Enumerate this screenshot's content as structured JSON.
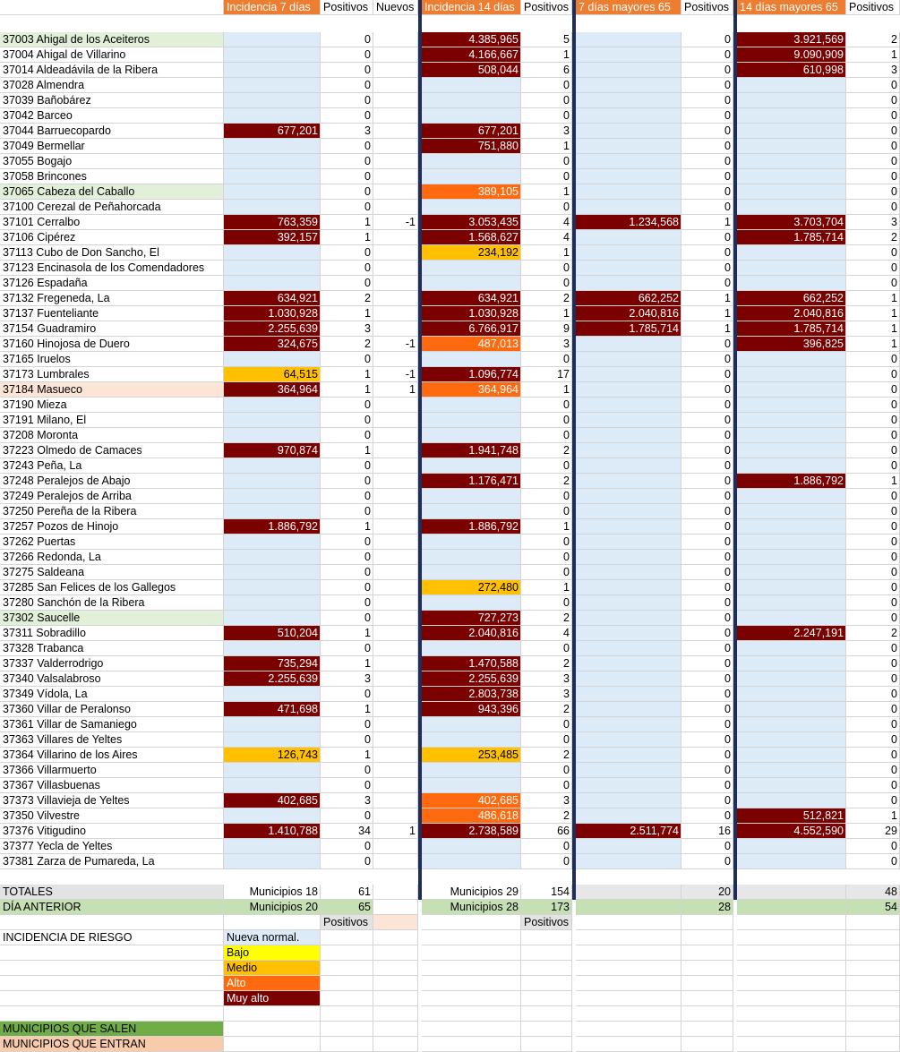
{
  "headers": [
    "",
    "Incidencia 7 días",
    "Positivos",
    "Nuevos",
    "Incidencia 14 días",
    "Positivos",
    "7 días mayores 65",
    "Positivos",
    "14 días mayores 65",
    "Positivos"
  ],
  "rows": [
    {
      "name": "37003 Ahigal de los Aceiteros",
      "hl": "green",
      "i7": "",
      "i7c": "ln",
      "p7": "0",
      "nu": "",
      "i14": "4.385,965",
      "i14c": "muyalto",
      "p14": "5",
      "m7": "",
      "m7c": "ln",
      "pm7": "0",
      "m14": "3.921,569",
      "m14c": "muyalto",
      "pm14": "2"
    },
    {
      "name": "37004 Ahigal de Villarino",
      "hl": "",
      "i7": "",
      "i7c": "ln",
      "p7": "0",
      "nu": "",
      "i14": "4.166,667",
      "i14c": "muyalto",
      "p14": "1",
      "m7": "",
      "m7c": "ln",
      "pm7": "0",
      "m14": "9.090,909",
      "m14c": "muyalto",
      "pm14": "1"
    },
    {
      "name": "37014 Aldeadávila de la Ribera",
      "hl": "",
      "i7": "",
      "i7c": "ln",
      "p7": "0",
      "nu": "",
      "i14": "508,044",
      "i14c": "muyalto",
      "p14": "6",
      "m7": "",
      "m7c": "ln",
      "pm7": "0",
      "m14": "610,998",
      "m14c": "muyalto",
      "pm14": "3"
    },
    {
      "name": "37028 Almendra",
      "hl": "",
      "i7": "",
      "i7c": "ln",
      "p7": "0",
      "nu": "",
      "i14": "",
      "i14c": "ln",
      "p14": "0",
      "m7": "",
      "m7c": "ln",
      "pm7": "0",
      "m14": "",
      "m14c": "ln",
      "pm14": "0"
    },
    {
      "name": "37039 Bañobárez",
      "hl": "",
      "i7": "",
      "i7c": "ln",
      "p7": "0",
      "nu": "",
      "i14": "",
      "i14c": "ln",
      "p14": "0",
      "m7": "",
      "m7c": "ln",
      "pm7": "0",
      "m14": "",
      "m14c": "ln",
      "pm14": "0"
    },
    {
      "name": "37042 Barceo",
      "hl": "",
      "i7": "",
      "i7c": "ln",
      "p7": "0",
      "nu": "",
      "i14": "",
      "i14c": "ln",
      "p14": "0",
      "m7": "",
      "m7c": "ln",
      "pm7": "0",
      "m14": "",
      "m14c": "ln",
      "pm14": "0"
    },
    {
      "name": "37044 Barruecopardo",
      "hl": "",
      "i7": "677,201",
      "i7c": "muyalto",
      "p7": "3",
      "nu": "",
      "i14": "677,201",
      "i14c": "muyalto",
      "p14": "3",
      "m7": "",
      "m7c": "ln",
      "pm7": "0",
      "m14": "",
      "m14c": "ln",
      "pm14": "0"
    },
    {
      "name": "37049 Bermellar",
      "hl": "",
      "i7": "",
      "i7c": "ln",
      "p7": "0",
      "nu": "",
      "i14": "751,880",
      "i14c": "muyalto",
      "p14": "1",
      "m7": "",
      "m7c": "ln",
      "pm7": "0",
      "m14": "",
      "m14c": "ln",
      "pm14": "0"
    },
    {
      "name": "37055 Bogajo",
      "hl": "",
      "i7": "",
      "i7c": "ln",
      "p7": "0",
      "nu": "",
      "i14": "",
      "i14c": "ln",
      "p14": "0",
      "m7": "",
      "m7c": "ln",
      "pm7": "0",
      "m14": "",
      "m14c": "ln",
      "pm14": "0"
    },
    {
      "name": "37058 Brincones",
      "hl": "",
      "i7": "",
      "i7c": "ln",
      "p7": "0",
      "nu": "",
      "i14": "",
      "i14c": "ln",
      "p14": "0",
      "m7": "",
      "m7c": "ln",
      "pm7": "0",
      "m14": "",
      "m14c": "ln",
      "pm14": "0"
    },
    {
      "name": "37065 Cabeza del Caballo",
      "hl": "green",
      "i7": "",
      "i7c": "ln",
      "p7": "0",
      "nu": "",
      "i14": "389,105",
      "i14c": "alto",
      "p14": "1",
      "m7": "",
      "m7c": "ln",
      "pm7": "0",
      "m14": "",
      "m14c": "ln",
      "pm14": "0"
    },
    {
      "name": "37100 Cerezal de Peñahorcada",
      "hl": "",
      "i7": "",
      "i7c": "ln",
      "p7": "0",
      "nu": "",
      "i14": "",
      "i14c": "ln",
      "p14": "0",
      "m7": "",
      "m7c": "ln",
      "pm7": "0",
      "m14": "",
      "m14c": "ln",
      "pm14": "0"
    },
    {
      "name": "37101 Cerralbo",
      "hl": "",
      "i7": "763,359",
      "i7c": "muyalto",
      "p7": "1",
      "nu": "-1",
      "i14": "3.053,435",
      "i14c": "muyalto",
      "p14": "4",
      "m7": "1.234,568",
      "m7c": "muyalto",
      "pm7": "1",
      "m14": "3.703,704",
      "m14c": "muyalto",
      "pm14": "3"
    },
    {
      "name": "37106 Cipérez",
      "hl": "",
      "i7": "392,157",
      "i7c": "muyalto",
      "p7": "1",
      "nu": "",
      "i14": "1.568,627",
      "i14c": "muyalto",
      "p14": "4",
      "m7": "",
      "m7c": "ln",
      "pm7": "0",
      "m14": "1.785,714",
      "m14c": "muyalto",
      "pm14": "2"
    },
    {
      "name": "37113 Cubo de Don Sancho, El",
      "hl": "",
      "i7": "",
      "i7c": "ln",
      "p7": "0",
      "nu": "",
      "i14": "234,192",
      "i14c": "medio",
      "p14": "1",
      "m7": "",
      "m7c": "ln",
      "pm7": "0",
      "m14": "",
      "m14c": "ln",
      "pm14": "0"
    },
    {
      "name": "37123 Encinasola de los Comendadores",
      "hl": "",
      "i7": "",
      "i7c": "ln",
      "p7": "0",
      "nu": "",
      "i14": "",
      "i14c": "ln",
      "p14": "0",
      "m7": "",
      "m7c": "ln",
      "pm7": "0",
      "m14": "",
      "m14c": "ln",
      "pm14": "0"
    },
    {
      "name": "37126 Espadaña",
      "hl": "",
      "i7": "",
      "i7c": "ln",
      "p7": "0",
      "nu": "",
      "i14": "",
      "i14c": "ln",
      "p14": "0",
      "m7": "",
      "m7c": "ln",
      "pm7": "0",
      "m14": "",
      "m14c": "ln",
      "pm14": "0"
    },
    {
      "name": "37132 Fregeneda, La",
      "hl": "",
      "i7": "634,921",
      "i7c": "muyalto",
      "p7": "2",
      "nu": "",
      "i14": "634,921",
      "i14c": "muyalto",
      "p14": "2",
      "m7": "662,252",
      "m7c": "muyalto",
      "pm7": "1",
      "m14": "662,252",
      "m14c": "muyalto",
      "pm14": "1"
    },
    {
      "name": "37137 Fuenteliante",
      "hl": "",
      "i7": "1.030,928",
      "i7c": "muyalto",
      "p7": "1",
      "nu": "",
      "i14": "1.030,928",
      "i14c": "muyalto",
      "p14": "1",
      "m7": "2.040,816",
      "m7c": "muyalto",
      "pm7": "1",
      "m14": "2.040,816",
      "m14c": "muyalto",
      "pm14": "1"
    },
    {
      "name": "37154 Guadramiro",
      "hl": "",
      "i7": "2.255,639",
      "i7c": "muyalto",
      "p7": "3",
      "nu": "",
      "i14": "6.766,917",
      "i14c": "muyalto",
      "p14": "9",
      "m7": "1.785,714",
      "m7c": "muyalto",
      "pm7": "1",
      "m14": "1.785,714",
      "m14c": "muyalto",
      "pm14": "1"
    },
    {
      "name": "37160 Hinojosa de Duero",
      "hl": "",
      "i7": "324,675",
      "i7c": "muyalto",
      "p7": "2",
      "nu": "-1",
      "i14": "487,013",
      "i14c": "alto",
      "p14": "3",
      "m7": "",
      "m7c": "ln",
      "pm7": "0",
      "m14": "396,825",
      "m14c": "muyalto",
      "pm14": "1"
    },
    {
      "name": "37165 Iruelos",
      "hl": "",
      "i7": "",
      "i7c": "ln",
      "p7": "0",
      "nu": "",
      "i14": "",
      "i14c": "ln",
      "p14": "0",
      "m7": "",
      "m7c": "ln",
      "pm7": "0",
      "m14": "",
      "m14c": "ln",
      "pm14": "0"
    },
    {
      "name": "37173 Lumbrales",
      "hl": "",
      "i7": "64,515",
      "i7c": "medio",
      "p7": "1",
      "nu": "-1",
      "i14": "1.096,774",
      "i14c": "muyalto",
      "p14": "17",
      "m7": "",
      "m7c": "ln",
      "pm7": "0",
      "m14": "",
      "m14c": "ln",
      "pm14": "0"
    },
    {
      "name": "37184 Masueco",
      "hl": "pink",
      "i7": "364,964",
      "i7c": "muyalto",
      "p7": "1",
      "nu": "1",
      "i14": "364,964",
      "i14c": "alto",
      "p14": "1",
      "m7": "",
      "m7c": "ln",
      "pm7": "0",
      "m14": "",
      "m14c": "ln",
      "pm14": "0"
    },
    {
      "name": "37190 Mieza",
      "hl": "",
      "i7": "",
      "i7c": "ln",
      "p7": "0",
      "nu": "",
      "i14": "",
      "i14c": "ln",
      "p14": "0",
      "m7": "",
      "m7c": "ln",
      "pm7": "0",
      "m14": "",
      "m14c": "ln",
      "pm14": "0"
    },
    {
      "name": "37191 Milano, El",
      "hl": "",
      "i7": "",
      "i7c": "ln",
      "p7": "0",
      "nu": "",
      "i14": "",
      "i14c": "ln",
      "p14": "0",
      "m7": "",
      "m7c": "ln",
      "pm7": "0",
      "m14": "",
      "m14c": "ln",
      "pm14": "0"
    },
    {
      "name": "37208 Moronta",
      "hl": "",
      "i7": "",
      "i7c": "ln",
      "p7": "0",
      "nu": "",
      "i14": "",
      "i14c": "ln",
      "p14": "0",
      "m7": "",
      "m7c": "ln",
      "pm7": "0",
      "m14": "",
      "m14c": "ln",
      "pm14": "0"
    },
    {
      "name": "37223 Olmedo de Camaces",
      "hl": "",
      "i7": "970,874",
      "i7c": "muyalto",
      "p7": "1",
      "nu": "",
      "i14": "1.941,748",
      "i14c": "muyalto",
      "p14": "2",
      "m7": "",
      "m7c": "ln",
      "pm7": "0",
      "m14": "",
      "m14c": "ln",
      "pm14": "0"
    },
    {
      "name": "37243 Peña, La",
      "hl": "",
      "i7": "",
      "i7c": "ln",
      "p7": "0",
      "nu": "",
      "i14": "",
      "i14c": "ln",
      "p14": "0",
      "m7": "",
      "m7c": "ln",
      "pm7": "0",
      "m14": "",
      "m14c": "ln",
      "pm14": "0"
    },
    {
      "name": "37248 Peralejos de Abajo",
      "hl": "",
      "i7": "",
      "i7c": "ln",
      "p7": "0",
      "nu": "",
      "i14": "1.176,471",
      "i14c": "muyalto",
      "p14": "2",
      "m7": "",
      "m7c": "ln",
      "pm7": "0",
      "m14": "1.886,792",
      "m14c": "muyalto",
      "pm14": "1"
    },
    {
      "name": "37249 Peralejos de Arriba",
      "hl": "",
      "i7": "",
      "i7c": "ln",
      "p7": "0",
      "nu": "",
      "i14": "",
      "i14c": "ln",
      "p14": "0",
      "m7": "",
      "m7c": "ln",
      "pm7": "0",
      "m14": "",
      "m14c": "ln",
      "pm14": "0"
    },
    {
      "name": "37250 Pereña de la Ribera",
      "hl": "",
      "i7": "",
      "i7c": "ln",
      "p7": "0",
      "nu": "",
      "i14": "",
      "i14c": "ln",
      "p14": "0",
      "m7": "",
      "m7c": "ln",
      "pm7": "0",
      "m14": "",
      "m14c": "ln",
      "pm14": "0"
    },
    {
      "name": "37257 Pozos de Hinojo",
      "hl": "",
      "i7": "1.886,792",
      "i7c": "muyalto",
      "p7": "1",
      "nu": "",
      "i14": "1.886,792",
      "i14c": "muyalto",
      "p14": "1",
      "m7": "",
      "m7c": "ln",
      "pm7": "0",
      "m14": "",
      "m14c": "ln",
      "pm14": "0"
    },
    {
      "name": "37262 Puertas",
      "hl": "",
      "i7": "",
      "i7c": "ln",
      "p7": "0",
      "nu": "",
      "i14": "",
      "i14c": "ln",
      "p14": "0",
      "m7": "",
      "m7c": "ln",
      "pm7": "0",
      "m14": "",
      "m14c": "ln",
      "pm14": "0"
    },
    {
      "name": "37266 Redonda, La",
      "hl": "",
      "i7": "",
      "i7c": "ln",
      "p7": "0",
      "nu": "",
      "i14": "",
      "i14c": "ln",
      "p14": "0",
      "m7": "",
      "m7c": "ln",
      "pm7": "0",
      "m14": "",
      "m14c": "ln",
      "pm14": "0"
    },
    {
      "name": "37275 Saldeana",
      "hl": "",
      "i7": "",
      "i7c": "ln",
      "p7": "0",
      "nu": "",
      "i14": "",
      "i14c": "ln",
      "p14": "0",
      "m7": "",
      "m7c": "ln",
      "pm7": "0",
      "m14": "",
      "m14c": "ln",
      "pm14": "0"
    },
    {
      "name": "37285 San Felices de los Gallegos",
      "hl": "",
      "i7": "",
      "i7c": "ln",
      "p7": "0",
      "nu": "",
      "i14": "272,480",
      "i14c": "medio",
      "p14": "1",
      "m7": "",
      "m7c": "ln",
      "pm7": "0",
      "m14": "",
      "m14c": "ln",
      "pm14": "0"
    },
    {
      "name": "37280 Sanchón de la Ribera",
      "hl": "",
      "i7": "",
      "i7c": "ln",
      "p7": "0",
      "nu": "",
      "i14": "",
      "i14c": "ln",
      "p14": "0",
      "m7": "",
      "m7c": "ln",
      "pm7": "0",
      "m14": "",
      "m14c": "ln",
      "pm14": "0"
    },
    {
      "name": "37302 Saucelle",
      "hl": "green",
      "i7": "",
      "i7c": "ln",
      "p7": "0",
      "nu": "",
      "i14": "727,273",
      "i14c": "muyalto",
      "p14": "2",
      "m7": "",
      "m7c": "ln",
      "pm7": "0",
      "m14": "",
      "m14c": "ln",
      "pm14": "0"
    },
    {
      "name": "37311 Sobradillo",
      "hl": "",
      "i7": "510,204",
      "i7c": "muyalto",
      "p7": "1",
      "nu": "",
      "i14": "2.040,816",
      "i14c": "muyalto",
      "p14": "4",
      "m7": "",
      "m7c": "ln",
      "pm7": "0",
      "m14": "2.247,191",
      "m14c": "muyalto",
      "pm14": "2"
    },
    {
      "name": "37328 Trabanca",
      "hl": "",
      "i7": "",
      "i7c": "ln",
      "p7": "0",
      "nu": "",
      "i14": "",
      "i14c": "ln",
      "p14": "0",
      "m7": "",
      "m7c": "ln",
      "pm7": "0",
      "m14": "",
      "m14c": "ln",
      "pm14": "0"
    },
    {
      "name": "37337 Valderrodrigo",
      "hl": "",
      "i7": "735,294",
      "i7c": "muyalto",
      "p7": "1",
      "nu": "",
      "i14": "1.470,588",
      "i14c": "muyalto",
      "p14": "2",
      "m7": "",
      "m7c": "ln",
      "pm7": "0",
      "m14": "",
      "m14c": "ln",
      "pm14": "0"
    },
    {
      "name": "37340 Valsalabroso",
      "hl": "",
      "i7": "2.255,639",
      "i7c": "muyalto",
      "p7": "3",
      "nu": "",
      "i14": "2.255,639",
      "i14c": "muyalto",
      "p14": "3",
      "m7": "",
      "m7c": "ln",
      "pm7": "0",
      "m14": "",
      "m14c": "ln",
      "pm14": "0"
    },
    {
      "name": "37349 Vídola, La",
      "hl": "",
      "i7": "",
      "i7c": "ln",
      "p7": "0",
      "nu": "",
      "i14": "2.803,738",
      "i14c": "muyalto",
      "p14": "3",
      "m7": "",
      "m7c": "ln",
      "pm7": "0",
      "m14": "",
      "m14c": "ln",
      "pm14": "0"
    },
    {
      "name": "37360 Villar de Peralonso",
      "hl": "",
      "i7": "471,698",
      "i7c": "muyalto",
      "p7": "1",
      "nu": "",
      "i14": "943,396",
      "i14c": "muyalto",
      "p14": "2",
      "m7": "",
      "m7c": "ln",
      "pm7": "0",
      "m14": "",
      "m14c": "ln",
      "pm14": "0"
    },
    {
      "name": "37361 Villar de Samaniego",
      "hl": "",
      "i7": "",
      "i7c": "ln",
      "p7": "0",
      "nu": "",
      "i14": "",
      "i14c": "ln",
      "p14": "0",
      "m7": "",
      "m7c": "ln",
      "pm7": "0",
      "m14": "",
      "m14c": "ln",
      "pm14": "0"
    },
    {
      "name": "37363 Villares de Yeltes",
      "hl": "",
      "i7": "",
      "i7c": "ln",
      "p7": "0",
      "nu": "",
      "i14": "",
      "i14c": "ln",
      "p14": "0",
      "m7": "",
      "m7c": "ln",
      "pm7": "0",
      "m14": "",
      "m14c": "ln",
      "pm14": "0"
    },
    {
      "name": "37364 Villarino de los Aires",
      "hl": "",
      "i7": "126,743",
      "i7c": "medio",
      "p7": "1",
      "nu": "",
      "i14": "253,485",
      "i14c": "medio",
      "p14": "2",
      "m7": "",
      "m7c": "ln",
      "pm7": "0",
      "m14": "",
      "m14c": "ln",
      "pm14": "0"
    },
    {
      "name": "37366 Villarmuerto",
      "hl": "",
      "i7": "",
      "i7c": "ln",
      "p7": "0",
      "nu": "",
      "i14": "",
      "i14c": "ln",
      "p14": "0",
      "m7": "",
      "m7c": "ln",
      "pm7": "0",
      "m14": "",
      "m14c": "ln",
      "pm14": "0"
    },
    {
      "name": "37367 Villasbuenas",
      "hl": "",
      "i7": "",
      "i7c": "ln",
      "p7": "0",
      "nu": "",
      "i14": "",
      "i14c": "ln",
      "p14": "0",
      "m7": "",
      "m7c": "ln",
      "pm7": "0",
      "m14": "",
      "m14c": "ln",
      "pm14": "0"
    },
    {
      "name": "37373 Villavieja de Yeltes",
      "hl": "",
      "i7": "402,685",
      "i7c": "muyalto",
      "p7": "3",
      "nu": "",
      "i14": "402,685",
      "i14c": "alto",
      "p14": "3",
      "m7": "",
      "m7c": "ln",
      "pm7": "0",
      "m14": "",
      "m14c": "ln",
      "pm14": "0"
    },
    {
      "name": "37350 Vilvestre",
      "hl": "",
      "i7": "",
      "i7c": "ln",
      "p7": "0",
      "nu": "",
      "i14": "486,618",
      "i14c": "alto",
      "p14": "2",
      "m7": "",
      "m7c": "ln",
      "pm7": "0",
      "m14": "512,821",
      "m14c": "muyalto",
      "pm14": "1"
    },
    {
      "name": "37376 Vitigudino",
      "hl": "",
      "i7": "1.410,788",
      "i7c": "muyalto",
      "p7": "34",
      "nu": "1",
      "i14": "2.738,589",
      "i14c": "muyalto",
      "p14": "66",
      "m7": "2.511,774",
      "m7c": "muyalto",
      "pm7": "16",
      "m14": "4.552,590",
      "m14c": "muyalto",
      "pm14": "29"
    },
    {
      "name": "37377 Yecla de Yeltes",
      "hl": "",
      "i7": "",
      "i7c": "ln",
      "p7": "0",
      "nu": "",
      "i14": "",
      "i14c": "ln",
      "p14": "0",
      "m7": "",
      "m7c": "ln",
      "pm7": "0",
      "m14": "",
      "m14c": "ln",
      "pm14": "0"
    },
    {
      "name": "37381 Zarza de Pumareda, La",
      "hl": "",
      "i7": "",
      "i7c": "ln",
      "p7": "0",
      "nu": "",
      "i14": "",
      "i14c": "ln",
      "p14": "0",
      "m7": "",
      "m7c": "ln",
      "pm7": "0",
      "m14": "",
      "m14c": "ln",
      "pm14": "0"
    }
  ],
  "totales": {
    "label": "TOTALES",
    "mun7": "Municipios 18",
    "p7": "61",
    "mun14": "Municipios 29",
    "p14": "154",
    "pm7": "20",
    "pm14": "48"
  },
  "anterior": {
    "label": "DÍA ANTERIOR",
    "mun7": "Municipios 20",
    "p7": "65",
    "mun14": "Municipios 28",
    "p14": "173",
    "pm7": "28",
    "pm14": "54"
  },
  "positivos_label": "Positivos",
  "legend": {
    "title": "INCIDENCIA DE RIESGO",
    "items": [
      {
        "label": "Nueva normal.",
        "cls": "ln"
      },
      {
        "label": "Bajo",
        "cls": "bajo"
      },
      {
        "label": "Medio",
        "cls": "medio"
      },
      {
        "label": "Alto",
        "cls": "alto"
      },
      {
        "label": "Muy alto",
        "cls": "muyalto"
      }
    ]
  },
  "salen": "MUNICIPIOS QUE SALEN",
  "entran": "MUNICIPIOS QUE ENTRAN",
  "colors": {
    "header": "#ed7d31",
    "muy_alto": "#7b0000",
    "alto": "#ff6a10",
    "medio": "#ffc000",
    "bajo": "#ffff00",
    "nueva_normal": "#dcebf7",
    "separator": "#1f2d5a"
  }
}
